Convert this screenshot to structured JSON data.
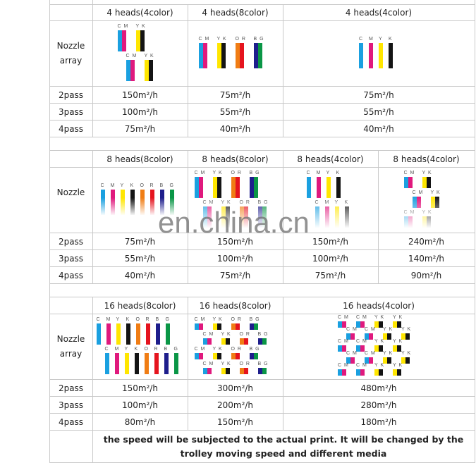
{
  "labels": {
    "nozzle": "Nozzle",
    "array": "array",
    "p2": "2pass",
    "p3": "3pass",
    "p4": "4pass"
  },
  "colors": {
    "C": "#1aa0e0",
    "M": "#e0197d",
    "Y": "#ffe600",
    "K": "#141414",
    "O": "#f07d14",
    "R": "#e5141e",
    "B": "#1e1e8c",
    "G": "#0a9646"
  },
  "sections": [
    {
      "headers": [
        "4 heads(4color)",
        "4 heads(8color)",
        "4 heads(4color)"
      ],
      "nozzle_label_lines": [
        "Nozzle",
        "array"
      ],
      "arrays": [
        [
          [
            "CM",
            "YK"
          ],
          [
            "CM",
            "YK"
          ]
        ],
        [
          [
            "CM",
            "YK",
            "OR",
            "BG"
          ]
        ],
        [
          [
            "C",
            "M",
            "Y",
            "K"
          ]
        ]
      ],
      "p2": [
        "150m²/h",
        "75m²/h",
        "75m²/h"
      ],
      "p3": [
        "100m²/h",
        "55m²/h",
        "55m²/h"
      ],
      "p4": [
        "75m²/h",
        "40m²/h",
        "40m²/h"
      ]
    },
    {
      "headers": [
        "8 heads(8color)",
        "8 heads(8color)",
        "8 heads(4color)",
        "8 heads(4color)"
      ],
      "nozzle_label_lines": [
        "Nozzle"
      ],
      "arrays": [
        [
          [
            "C",
            "M",
            "Y",
            "K",
            "O",
            "R",
            "B",
            "G"
          ]
        ],
        [
          [
            "CM",
            "YK",
            "OR",
            "BG"
          ],
          [
            "CM",
            "YK",
            "OR",
            "BG"
          ]
        ],
        [
          [
            "C",
            "M",
            "Y",
            "K"
          ],
          [
            "C",
            "M",
            "Y",
            "K"
          ]
        ],
        [
          [
            "CM",
            "YK"
          ],
          [
            "CM",
            "YK"
          ],
          [
            "CM",
            "YK"
          ]
        ]
      ],
      "p2": [
        "75m²/h",
        "150m²/h",
        "150m²/h",
        "240m²/h"
      ],
      "p3": [
        "55m²/h",
        "100m²/h",
        "100m²/h",
        "140m²/h"
      ],
      "p4": [
        "40m²/h",
        "75m²/h",
        "75m²/h",
        "90m²/h"
      ]
    },
    {
      "headers": [
        "16 heads(8color)",
        "16 heads(8color)",
        "16 heads(4color)"
      ],
      "nozzle_label_lines": [
        "Nozzle",
        "array"
      ],
      "arrays": [
        [
          [
            "C",
            "M",
            "Y",
            "K",
            "O",
            "R",
            "B",
            "G"
          ],
          [
            "C",
            "M",
            "Y",
            "K",
            "O",
            "R",
            "B",
            "G"
          ]
        ],
        [
          [
            "CM",
            "YK",
            "OR",
            "BG"
          ],
          [
            "CM",
            "YK",
            "OR",
            "BG"
          ],
          [
            "CM",
            "YK",
            "OR",
            "BG"
          ],
          [
            "CM",
            "YK",
            "OR",
            "BG"
          ]
        ],
        [
          [
            "CM",
            "CM",
            "YK",
            "YK"
          ],
          [
            "CM",
            "CM",
            "YK",
            "YK"
          ],
          [
            "CM",
            "CM",
            "YK",
            "YK"
          ],
          [
            "CM",
            "CM",
            "YK",
            "YK"
          ],
          [
            "CM",
            "CM",
            "YK",
            "YK"
          ]
        ]
      ],
      "p2": [
        "150m²/h",
        "300m²/h",
        "480m²/h"
      ],
      "p3": [
        "100m²/h",
        "200m²/h",
        "280m²/h"
      ],
      "p4": [
        "80m²/h",
        "150m²/h",
        "180m²/h"
      ]
    }
  ],
  "note": "the speed will be subjected to the actual print. It will be changed by the trolley moving speed and different media",
  "watermark": "en.china.cn"
}
